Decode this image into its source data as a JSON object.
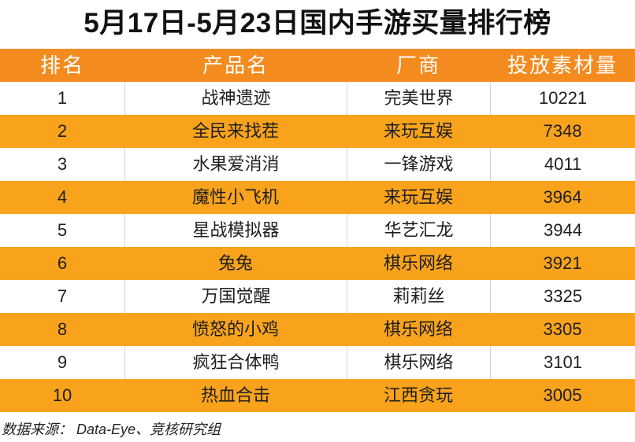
{
  "colors": {
    "header_bg": "#F38B1F",
    "stripe_bg": "#F9A31C",
    "row_bg": "#FFFFFF",
    "header_text": "#FFFFFF"
  },
  "chart_data": {
    "type": "table",
    "title": "5月17日-5月23日国内手游买量排行榜",
    "columns": [
      "排名",
      "产品名",
      "厂商",
      "投放素材量"
    ],
    "rows": [
      {
        "rank": 1,
        "product": "战神遗迹",
        "publisher": "完美世界",
        "creatives": 10221
      },
      {
        "rank": 2,
        "product": "全民来找茬",
        "publisher": "来玩互娱",
        "creatives": 7348
      },
      {
        "rank": 3,
        "product": "水果爱消消",
        "publisher": "一锋游戏",
        "creatives": 4011
      },
      {
        "rank": 4,
        "product": "魔性小飞机",
        "publisher": "来玩互娱",
        "creatives": 3964
      },
      {
        "rank": 5,
        "product": "星战模拟器",
        "publisher": "华艺汇龙",
        "creatives": 3944
      },
      {
        "rank": 6,
        "product": "兔兔",
        "publisher": "棋乐网络",
        "creatives": 3921
      },
      {
        "rank": 7,
        "product": "万国觉醒",
        "publisher": "莉莉丝",
        "creatives": 3325
      },
      {
        "rank": 8,
        "product": "愤怒的小鸡",
        "publisher": "棋乐网络",
        "creatives": 3305
      },
      {
        "rank": 9,
        "product": "疯狂合体鸭",
        "publisher": "棋乐网络",
        "creatives": 3101
      },
      {
        "rank": 10,
        "product": "热血合击",
        "publisher": "江西贪玩",
        "creatives": 3005
      }
    ]
  },
  "footer": {
    "source": "数据来源： Data-Eye、竞核研究组"
  }
}
